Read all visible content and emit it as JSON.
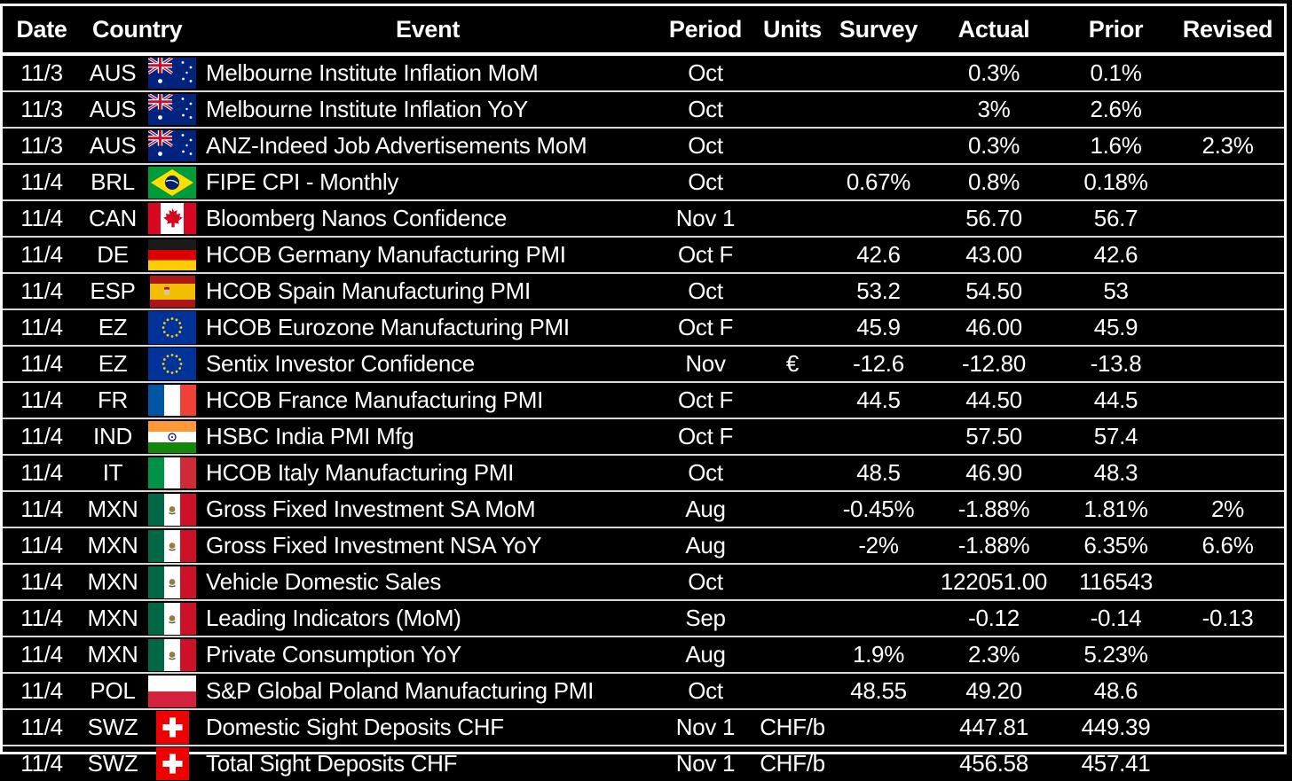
{
  "colors": {
    "background": "#000000",
    "text": "#ffffff",
    "row_divider": "#d9d9d9",
    "header_divider": "#ffffff",
    "outer_border": "#ffffff"
  },
  "chart_data": {
    "type": "table",
    "grid": "horizontal-lines-on",
    "columns": [
      "Date",
      "Country",
      "Event",
      "Period",
      "Units",
      "Survey",
      "Actual",
      "Prior",
      "Revised"
    ],
    "rows": [
      {
        "date": "11/3",
        "country": "AUS",
        "flag": "aus",
        "event": "Melbourne Institute Inflation MoM",
        "period": "Oct",
        "units": "",
        "survey": "",
        "actual": "0.3%",
        "prior": "0.1%",
        "revised": ""
      },
      {
        "date": "11/3",
        "country": "AUS",
        "flag": "aus",
        "event": "Melbourne Institute Inflation YoY",
        "period": "Oct",
        "units": "",
        "survey": "",
        "actual": "3%",
        "prior": "2.6%",
        "revised": ""
      },
      {
        "date": "11/3",
        "country": "AUS",
        "flag": "aus",
        "event": "ANZ-Indeed Job Advertisements MoM",
        "period": "Oct",
        "units": "",
        "survey": "",
        "actual": "0.3%",
        "prior": "1.6%",
        "revised": "2.3%"
      },
      {
        "date": "11/4",
        "country": "BRL",
        "flag": "brl",
        "event": "FIPE CPI - Monthly",
        "period": "Oct",
        "units": "",
        "survey": "0.67%",
        "actual": "0.8%",
        "prior": "0.18%",
        "revised": ""
      },
      {
        "date": "11/4",
        "country": "CAN",
        "flag": "can",
        "event": "Bloomberg Nanos Confidence",
        "period": "Nov 1",
        "units": "",
        "survey": "",
        "actual": "56.70",
        "prior": "56.7",
        "revised": ""
      },
      {
        "date": "11/4",
        "country": "DE",
        "flag": "de",
        "event": "HCOB Germany Manufacturing PMI",
        "period": "Oct F",
        "units": "",
        "survey": "42.6",
        "actual": "43.00",
        "prior": "42.6",
        "revised": ""
      },
      {
        "date": "11/4",
        "country": "ESP",
        "flag": "esp",
        "event": "HCOB Spain Manufacturing PMI",
        "period": "Oct",
        "units": "",
        "survey": "53.2",
        "actual": "54.50",
        "prior": "53",
        "revised": ""
      },
      {
        "date": "11/4",
        "country": "EZ",
        "flag": "ez",
        "event": "HCOB Eurozone Manufacturing PMI",
        "period": "Oct F",
        "units": "",
        "survey": "45.9",
        "actual": "46.00",
        "prior": "45.9",
        "revised": ""
      },
      {
        "date": "11/4",
        "country": "EZ",
        "flag": "ez",
        "event": "Sentix Investor Confidence",
        "period": "Nov",
        "units": "€",
        "survey": "-12.6",
        "actual": "-12.80",
        "prior": "-13.8",
        "revised": ""
      },
      {
        "date": "11/4",
        "country": "FR",
        "flag": "fr",
        "event": "HCOB France Manufacturing PMI",
        "period": "Oct F",
        "units": "",
        "survey": "44.5",
        "actual": "44.50",
        "prior": "44.5",
        "revised": ""
      },
      {
        "date": "11/4",
        "country": "IND",
        "flag": "ind",
        "event": "HSBC India PMI Mfg",
        "period": "Oct F",
        "units": "",
        "survey": "",
        "actual": "57.50",
        "prior": "57.4",
        "revised": ""
      },
      {
        "date": "11/4",
        "country": "IT",
        "flag": "it",
        "event": "HCOB Italy Manufacturing PMI",
        "period": "Oct",
        "units": "",
        "survey": "48.5",
        "actual": "46.90",
        "prior": "48.3",
        "revised": ""
      },
      {
        "date": "11/4",
        "country": "MXN",
        "flag": "mxn",
        "event": "Gross Fixed Investment SA MoM",
        "period": "Aug",
        "units": "",
        "survey": "-0.45%",
        "actual": "-1.88%",
        "prior": "1.81%",
        "revised": "2%"
      },
      {
        "date": "11/4",
        "country": "MXN",
        "flag": "mxn",
        "event": "Gross Fixed Investment NSA YoY",
        "period": "Aug",
        "units": "",
        "survey": "-2%",
        "actual": "-1.88%",
        "prior": "6.35%",
        "revised": "6.6%"
      },
      {
        "date": "11/4",
        "country": "MXN",
        "flag": "mxn",
        "event": "Vehicle Domestic Sales",
        "period": "Oct",
        "units": "",
        "survey": "",
        "actual": "122051.00",
        "prior": "116543",
        "revised": ""
      },
      {
        "date": "11/4",
        "country": "MXN",
        "flag": "mxn",
        "event": "Leading Indicators (MoM)",
        "period": "Sep",
        "units": "",
        "survey": "",
        "actual": "-0.12",
        "prior": "-0.14",
        "revised": "-0.13"
      },
      {
        "date": "11/4",
        "country": "MXN",
        "flag": "mxn",
        "event": "Private Consumption YoY",
        "period": "Aug",
        "units": "",
        "survey": "1.9%",
        "actual": "2.3%",
        "prior": "5.23%",
        "revised": ""
      },
      {
        "date": "11/4",
        "country": "POL",
        "flag": "pol",
        "event": "S&P Global Poland Manufacturing PMI",
        "period": "Oct",
        "units": "",
        "survey": "48.55",
        "actual": "49.20",
        "prior": "48.6",
        "revised": ""
      },
      {
        "date": "11/4",
        "country": "SWZ",
        "flag": "swz",
        "event": "Domestic Sight Deposits CHF",
        "period": "Nov 1",
        "units": "CHF/b",
        "survey": "",
        "actual": "447.81",
        "prior": "449.39",
        "revised": ""
      },
      {
        "date": "11/4",
        "country": "SWZ",
        "flag": "swz",
        "event": "Total Sight Deposits CHF",
        "period": "Nov 1",
        "units": "CHF/b",
        "survey": "",
        "actual": "456.58",
        "prior": "457.41",
        "revised": ""
      }
    ]
  }
}
